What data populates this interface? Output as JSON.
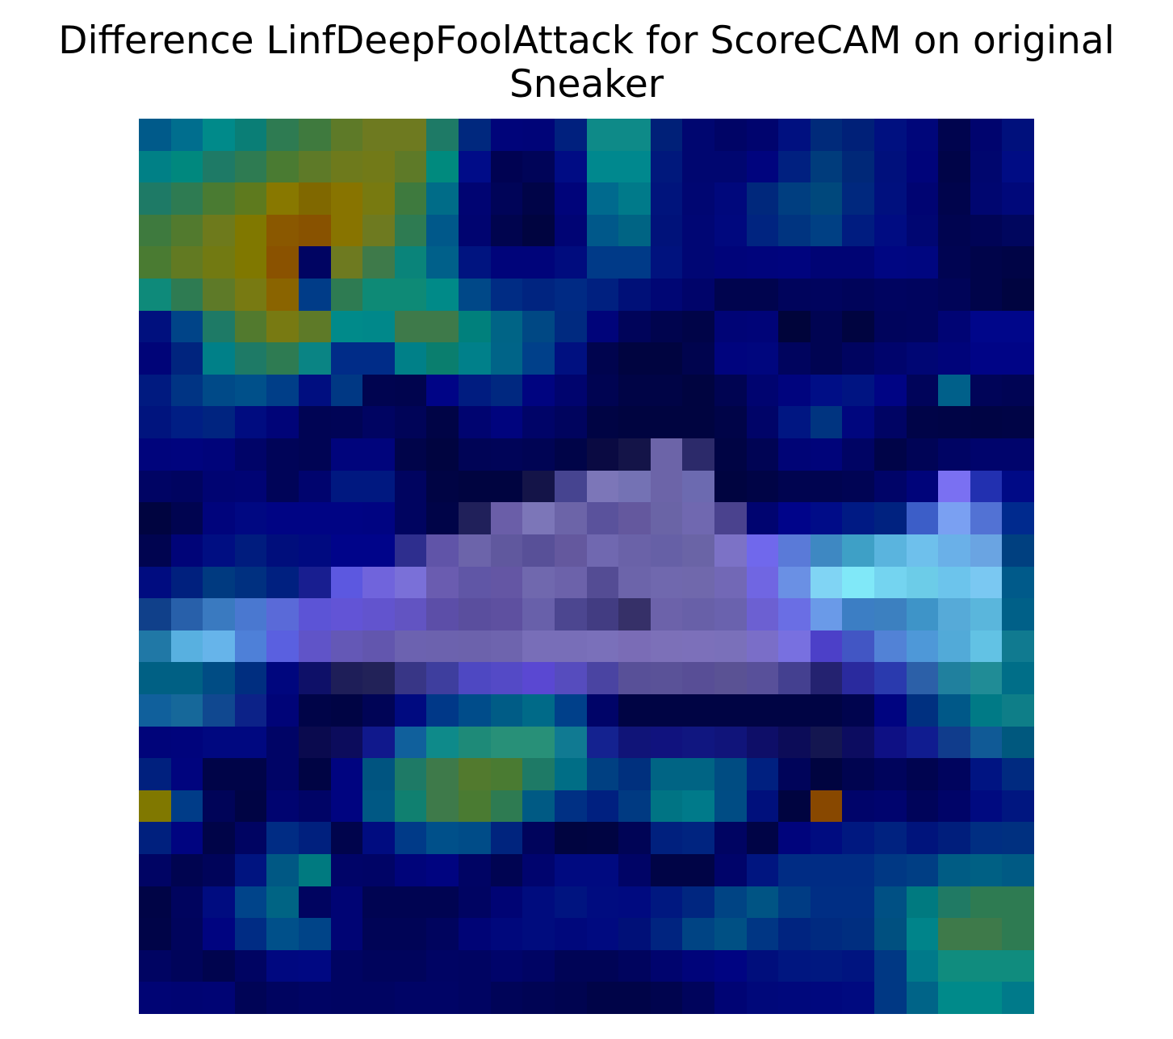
{
  "chart_data": {
    "type": "heatmap",
    "title_lines": [
      "Difference LinfDeepFoolAttack for ScoreCAM on original",
      "Sneaker"
    ],
    "rows": 28,
    "cols": 28,
    "grid": false,
    "axes": "off",
    "colormap": "jet overlaid on grayscale image",
    "cells": [
      [
        "#005a8a",
        "#006e8e",
        "#008a8a",
        "#0a7e76",
        "#2e7b52",
        "#3f7a3e",
        "#5e7a28",
        "#6e7a20",
        "#6e7a20",
        "#1e7a66",
        "#00287e",
        "#00047a",
        "#000478",
        "#00207e",
        "#0e8a88",
        "#0e8a88",
        "#002078",
        "#000670",
        "#000466",
        "#00046e",
        "#001080",
        "#002a7a",
        "#002078",
        "#001080",
        "#00067a",
        "#00044e",
        "#00046e",
        "#00107c"
      ],
      [
        "#008086",
        "#00887e",
        "#1e7a66",
        "#2e7b52",
        "#4a7b32",
        "#5e7a28",
        "#6e7a1c",
        "#727a18",
        "#5e7a28",
        "#008a7e",
        "#000c88",
        "#000252",
        "#000458",
        "#000c84",
        "#00888e",
        "#00888e",
        "#00187c",
        "#000670",
        "#000670",
        "#00047e",
        "#002080",
        "#003c7c",
        "#002878",
        "#00107c",
        "#00047a",
        "#000448",
        "#00066e",
        "#000c84"
      ],
      [
        "#1e7a66",
        "#2e7b52",
        "#4a7b32",
        "#5e7a1e",
        "#887800",
        "#806800",
        "#887400",
        "#787a10",
        "#3e7a3e",
        "#006c88",
        "#000472",
        "#000458",
        "#000448",
        "#00047a",
        "#006a8e",
        "#007a8a",
        "#00147c",
        "#000672",
        "#00087c",
        "#00287c",
        "#003e80",
        "#00487c",
        "#00287e",
        "#00107e",
        "#000472",
        "#00044c",
        "#000670",
        "#00087a"
      ],
      [
        "#3e7a3e",
        "#527a2e",
        "#6e7a1c",
        "#807800",
        "#8a5800",
        "#885200",
        "#887400",
        "#6e7a20",
        "#2e7b52",
        "#00588a",
        "#000470",
        "#00044e",
        "#000440",
        "#000474",
        "#00588a",
        "#006484",
        "#00127a",
        "#000674",
        "#00087e",
        "#002480",
        "#003480",
        "#004084",
        "#001c80",
        "#000c82",
        "#000672",
        "#000450",
        "#000456",
        "#00065e"
      ],
      [
        "#4a7b32",
        "#627a22",
        "#727a12",
        "#807800",
        "#8a5200",
        "#000462",
        "#6e7a20",
        "#3e7a4a",
        "#0a847a",
        "#00608a",
        "#001480",
        "#00047a",
        "#00047a",
        "#000c7e",
        "#003a88",
        "#003a88",
        "#00127e",
        "#000674",
        "#00047a",
        "#00047c",
        "#00047e",
        "#000474",
        "#000474",
        "#000682",
        "#000680",
        "#000452",
        "#00044a",
        "#000446"
      ],
      [
        "#0e8a7a",
        "#2e7b52",
        "#5e7a28",
        "#787a12",
        "#8a6400",
        "#003c88",
        "#2e7b52",
        "#0e8a76",
        "#0e8a76",
        "#008a88",
        "#004888",
        "#002c84",
        "#002480",
        "#002a84",
        "#002080",
        "#001078",
        "#000674",
        "#00046a",
        "#00044e",
        "#00044e",
        "#00045c",
        "#00045e",
        "#00045a",
        "#000460",
        "#00045e",
        "#000458",
        "#00044a",
        "#000440"
      ],
      [
        "#00107e",
        "#004488",
        "#1e7a66",
        "#527a2e",
        "#787a12",
        "#5e7a28",
        "#008a8a",
        "#00888a",
        "#3e7a4a",
        "#3e7a4a",
        "#00807c",
        "#006486",
        "#004884",
        "#002a80",
        "#00047a",
        "#00045a",
        "#00044e",
        "#000448",
        "#000476",
        "#000478",
        "#00043a",
        "#000452",
        "#000440",
        "#00045c",
        "#00045e",
        "#000474",
        "#00068a",
        "#00068a"
      ],
      [
        "#000478",
        "#00247e",
        "#008088",
        "#1e7a66",
        "#2e7b52",
        "#0a8484",
        "#002c88",
        "#002c88",
        "#008088",
        "#0a7e6e",
        "#00808a",
        "#006488",
        "#00408a",
        "#001080",
        "#00044e",
        "#000440",
        "#000440",
        "#00044e",
        "#00047e",
        "#00067e",
        "#00045e",
        "#000452",
        "#000460",
        "#00046c",
        "#000674",
        "#00047a",
        "#000486",
        "#000486"
      ],
      [
        "#001a80",
        "#003484",
        "#004a88",
        "#00508a",
        "#003e88",
        "#000e80",
        "#003884",
        "#000450",
        "#00044e",
        "#000486",
        "#001c80",
        "#002880",
        "#000480",
        "#00046e",
        "#000452",
        "#000446",
        "#000446",
        "#000440",
        "#000452",
        "#000470",
        "#00047e",
        "#000e86",
        "#001482",
        "#000484",
        "#00045a",
        "#00608a",
        "#000458",
        "#000454"
      ],
      [
        "#00147e",
        "#001e84",
        "#002480",
        "#000c80",
        "#000478",
        "#000454",
        "#000456",
        "#000462",
        "#000458",
        "#000446",
        "#000470",
        "#00047e",
        "#000468",
        "#00045e",
        "#000444",
        "#000440",
        "#000440",
        "#000440",
        "#000448",
        "#000468",
        "#001682",
        "#003480",
        "#00067e",
        "#000464",
        "#000448",
        "#000446",
        "#000444",
        "#000446"
      ],
      [
        "#00047c",
        "#00047e",
        "#00047a",
        "#000468",
        "#000458",
        "#000454",
        "#00047c",
        "#00047c",
        "#00044a",
        "#000440",
        "#000456",
        "#000458",
        "#000454",
        "#000448",
        "#0a0a42",
        "#141448",
        "#6c64a8",
        "#2c2a6a",
        "#000444",
        "#000454",
        "#000476",
        "#00047a",
        "#000464",
        "#000448",
        "#000456",
        "#000464",
        "#00046c",
        "#00046c"
      ],
      [
        "#000464",
        "#000460",
        "#000472",
        "#000474",
        "#000458",
        "#00046e",
        "#001880",
        "#001880",
        "#000460",
        "#000444",
        "#000440",
        "#000440",
        "#141448",
        "#464490",
        "#7c76b8",
        "#7472b4",
        "#6c64a8",
        "#6c6ab0",
        "#000440",
        "#000446",
        "#000450",
        "#000450",
        "#000454",
        "#000468",
        "#00047a",
        "#7a70f2",
        "#2230b0",
        "#000a86"
      ],
      [
        "#000440",
        "#000450",
        "#00047c",
        "#000882",
        "#000484",
        "#000484",
        "#000484",
        "#000482",
        "#000460",
        "#000448",
        "#20205a",
        "#6a5ea8",
        "#7c76b8",
        "#6c64a8",
        "#5a529c",
        "#64589e",
        "#6a64a6",
        "#7068b0",
        "#4a428e",
        "#000470",
        "#00048a",
        "#000c88",
        "#001a84",
        "#002280",
        "#3c5ec8",
        "#7aa0f2",
        "#5272d4",
        "#002a8e"
      ],
      [
        "#000450",
        "#000478",
        "#000e82",
        "#001c7e",
        "#000e7c",
        "#000a80",
        "#00048a",
        "#00048a",
        "#2e2e8e",
        "#6054a8",
        "#6c64aa",
        "#60589e",
        "#585098",
        "#64589e",
        "#7068b0",
        "#6a62a8",
        "#6660a6",
        "#6a64a6",
        "#7c72c6",
        "#7068ec",
        "#5a7ad8",
        "#3e88c2",
        "#3ea0c6",
        "#5ab4de",
        "#6ec0ec",
        "#6ab0e8",
        "#6aa4e2",
        "#004080"
      ],
      [
        "#000c80",
        "#00207e",
        "#003a80",
        "#003080",
        "#002080",
        "#181e90",
        "#5c58e0",
        "#7064dc",
        "#7a70d8",
        "#6a5cb0",
        "#6056a6",
        "#6456a4",
        "#7068ae",
        "#6c62aa",
        "#544c94",
        "#6c64aa",
        "#7068ae",
        "#7068ac",
        "#7268b6",
        "#7066e2",
        "#6a90e4",
        "#80d4f4",
        "#80e8f8",
        "#74d4f0",
        "#6ccce8",
        "#6cc4ec",
        "#7ac8f2",
        "#005a8a"
      ],
      [
        "#10408a",
        "#2860aa",
        "#3a7ac0",
        "#4a78d0",
        "#5a6ad8",
        "#5c54d6",
        "#6254d6",
        "#6254ce",
        "#6254c2",
        "#5c4ea8",
        "#5a4e9e",
        "#5e50a0",
        "#6860aa",
        "#4c4690",
        "#423c82",
        "#363068",
        "#6c62aa",
        "#6860a8",
        "#6a62ae",
        "#6c60d2",
        "#6a6ee4",
        "#6a9ae8",
        "#3c7ec4",
        "#3c80c0",
        "#3e94c8",
        "#56aad8",
        "#5ab6dc",
        "#006088"
      ],
      [
        "#2078a6",
        "#58b0e0",
        "#66b4ea",
        "#4e80d8",
        "#5a60e0",
        "#6054c8",
        "#6458b6",
        "#6256ae",
        "#6c62b0",
        "#6c62ae",
        "#6c62ac",
        "#6e64ae",
        "#786eb8",
        "#786eb8",
        "#7a70ba",
        "#7a6cb6",
        "#7c70b8",
        "#7c70ba",
        "#7a70ba",
        "#7a6ec8",
        "#7870e0",
        "#4c40c8",
        "#4256c4",
        "#5282d6",
        "#4e98d8",
        "#52aad8",
        "#62c2e4",
        "#107a90"
      ],
      [
        "#006084",
        "#006084",
        "#004c84",
        "#002e80",
        "#00067e",
        "#0e1068",
        "#1e1e58",
        "#222258",
        "#383686",
        "#3e3e9e",
        "#4e48c2",
        "#544ac6",
        "#5a48d2",
        "#564cbe",
        "#4a44a2",
        "#585098",
        "#5a5298",
        "#584e96",
        "#5a5294",
        "#58509a",
        "#444090",
        "#242270",
        "#2a2a9e",
        "#2a3aae",
        "#2c60a8",
        "#20809e",
        "#208c96",
        "#006e88"
      ],
      [
        "#10609c",
        "#16689a",
        "#104890",
        "#0c2288",
        "#000478",
        "#000448",
        "#000444",
        "#000456",
        "#000a80",
        "#003888",
        "#004c8a",
        "#005c86",
        "#006a88",
        "#00408a",
        "#000468",
        "#000444",
        "#000444",
        "#000444",
        "#000444",
        "#000444",
        "#000444",
        "#000444",
        "#00044e",
        "#000480",
        "#003080",
        "#005888",
        "#007a86",
        "#0e7e88"
      ],
      [
        "#00047a",
        "#00047c",
        "#000880",
        "#000880",
        "#000466",
        "#0a0a4e",
        "#0c0c5c",
        "#10188c",
        "#10609c",
        "#0e8a8a",
        "#1e8a78",
        "#289078",
        "#289078",
        "#107a92",
        "#142290",
        "#101478",
        "#10127e",
        "#101680",
        "#10147a",
        "#0e0e68",
        "#0c0c58",
        "#141650",
        "#0c0c60",
        "#0e1084",
        "#101c90",
        "#103c8c",
        "#105a96",
        "#00587e"
      ],
      [
        "#00207e",
        "#00047e",
        "#000448",
        "#000448",
        "#000466",
        "#000444",
        "#000480",
        "#005480",
        "#1e7a66",
        "#3e7a4a",
        "#527a2e",
        "#4a7b32",
        "#1e7a66",
        "#006e86",
        "#004082",
        "#00307e",
        "#006484",
        "#006484",
        "#004c82",
        "#002080",
        "#00045a",
        "#000440",
        "#000450",
        "#00045c",
        "#000450",
        "#00045e",
        "#001482",
        "#002a80"
      ],
      [
        "#807800",
        "#003c88",
        "#000458",
        "#000444",
        "#000470",
        "#000466",
        "#000480",
        "#005884",
        "#108070",
        "#3e7a4a",
        "#4a7b32",
        "#2e7b52",
        "#005a84",
        "#003084",
        "#002080",
        "#003a82",
        "#007484",
        "#007a8a",
        "#004c84",
        "#00107c",
        "#000440",
        "#884800",
        "#00046a",
        "#00046e",
        "#00045a",
        "#000468",
        "#000a80",
        "#001680"
      ],
      [
        "#00207e",
        "#000480",
        "#000448",
        "#000462",
        "#002c84",
        "#00207e",
        "#00044c",
        "#000c80",
        "#003a88",
        "#00508a",
        "#004c88",
        "#00247e",
        "#00045c",
        "#000440",
        "#000442",
        "#000456",
        "#00207e",
        "#002480",
        "#000462",
        "#000446",
        "#00047c",
        "#000c80",
        "#001880",
        "#002280",
        "#00147c",
        "#001e7c",
        "#002e82",
        "#003080"
      ],
      [
        "#000464",
        "#000450",
        "#00045a",
        "#001480",
        "#005884",
        "#007a80",
        "#000468",
        "#000466",
        "#00047a",
        "#000480",
        "#000464",
        "#000452",
        "#00046e",
        "#000a80",
        "#000a80",
        "#000466",
        "#000446",
        "#000446",
        "#00046a",
        "#001580",
        "#002c84",
        "#002c84",
        "#002c84",
        "#003884",
        "#003e84",
        "#005c84",
        "#006084",
        "#005a84"
      ],
      [
        "#000446",
        "#00045e",
        "#000c80",
        "#00448a",
        "#006484",
        "#000460",
        "#000474",
        "#000452",
        "#000452",
        "#000452",
        "#000462",
        "#000474",
        "#000c7e",
        "#001480",
        "#000c80",
        "#000a80",
        "#001880",
        "#002680",
        "#004484",
        "#005484",
        "#003c84",
        "#002e84",
        "#002e84",
        "#005084",
        "#007a80",
        "#207a64",
        "#2e7b52",
        "#2e7b52"
      ],
      [
        "#000448",
        "#00045c",
        "#000480",
        "#002c84",
        "#00508a",
        "#004488",
        "#000474",
        "#000456",
        "#000456",
        "#00045e",
        "#000476",
        "#00087c",
        "#000c7e",
        "#00087c",
        "#000a80",
        "#001078",
        "#002480",
        "#004484",
        "#005084",
        "#003684",
        "#002480",
        "#002a80",
        "#002e80",
        "#005080",
        "#00848a",
        "#3e7a4a",
        "#3e7a4a",
        "#2e7b52"
      ],
      [
        "#000462",
        "#00045a",
        "#00044e",
        "#000462",
        "#000880",
        "#000882",
        "#000462",
        "#00045c",
        "#00045c",
        "#000464",
        "#000462",
        "#00046a",
        "#000464",
        "#000456",
        "#000456",
        "#00045e",
        "#00046e",
        "#00047a",
        "#000482",
        "#000e7c",
        "#001680",
        "#001880",
        "#001480",
        "#003884",
        "#007a8a",
        "#108c7e",
        "#108c7e",
        "#108c7e"
      ],
      [
        "#000474",
        "#000472",
        "#000474",
        "#000456",
        "#000460",
        "#000464",
        "#000462",
        "#000462",
        "#000466",
        "#000466",
        "#000462",
        "#000458",
        "#000454",
        "#000450",
        "#000448",
        "#000448",
        "#00044e",
        "#00045c",
        "#000474",
        "#00087a",
        "#00087c",
        "#00087e",
        "#000a80",
        "#003884",
        "#006488",
        "#008a8a",
        "#008a8a",
        "#007a8a"
      ]
    ]
  }
}
